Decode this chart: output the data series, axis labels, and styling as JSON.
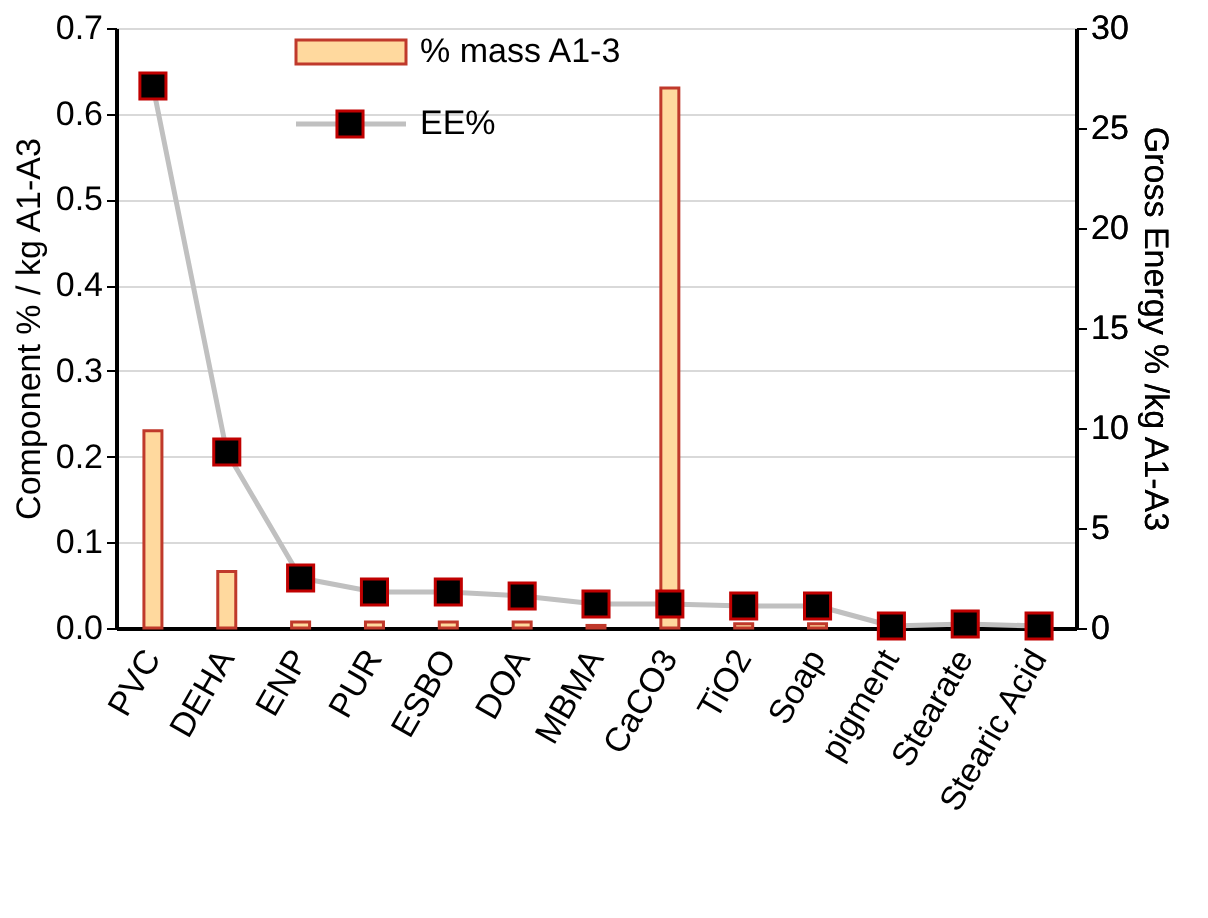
{
  "chart_data": {
    "type": "bar",
    "ylabel": "Component  % / kg A1-A3",
    "y2label": "Gross Energy % /kg A1-A3",
    "categories": [
      "PVC",
      "DEHA",
      "ENP",
      "PUR",
      "ESBO",
      "DOA",
      "MBMA",
      "CaCO3",
      "TiO2",
      "Soap",
      "pigment",
      "Stearate",
      "Stearic Acid"
    ],
    "series": [
      {
        "name": "% mass A1-3",
        "color": "#ffd99e",
        "values": [
          0.23,
          0.066,
          0.007,
          0.007,
          0.007,
          0.007,
          0.003,
          0.63,
          0.005,
          0.005,
          null,
          null,
          null
        ]
      },
      {
        "name": "EE%",
        "type": "line",
        "axis": "y2",
        "color": "#c0c0c0",
        "marker": "square",
        "values": [
          27.1,
          8.8,
          2.5,
          1.8,
          1.8,
          1.6,
          1.2,
          1.2,
          1.1,
          1.1,
          0.1,
          0.2,
          0.1
        ]
      }
    ],
    "ylim": [
      0,
      0.7
    ],
    "yticks": [
      {
        "value": 0,
        "label": "0.0"
      },
      0.1,
      0.2,
      0.3,
      0.4,
      0.5,
      0.6,
      0.7
    ],
    "y2lim": [
      0,
      30
    ],
    "y2ticks": [
      0,
      5,
      10,
      15,
      20,
      25,
      30
    ],
    "grid": "y",
    "legend": "top left"
  }
}
